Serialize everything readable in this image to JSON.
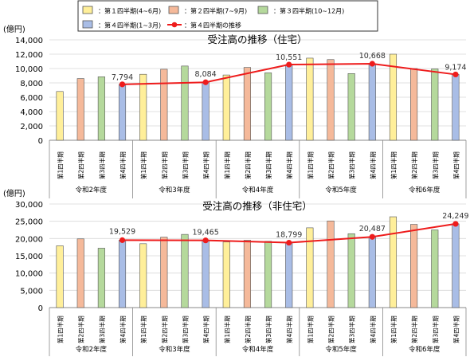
{
  "legend": {
    "items": [
      {
        "label": "：第１四半期(4~6月)",
        "color": "#ffef9a",
        "kind": "bar"
      },
      {
        "label": "：第２四半期(7~9月)",
        "color": "#f5b99a",
        "kind": "bar"
      },
      {
        "label": "：第３四半期(10~12月)",
        "color": "#b5d99c",
        "kind": "bar"
      },
      {
        "label": "：第４四半期(1~3月)",
        "color": "#a9bde6",
        "kind": "bar"
      },
      {
        "label": "：第４四半期の推移",
        "color": "#ee1c1c",
        "kind": "line"
      }
    ]
  },
  "colors": {
    "q1": "#ffef9a",
    "q2": "#f5b99a",
    "q3": "#b5d99c",
    "q4": "#a9bde6",
    "trend": "#ee1c1c",
    "bar_stroke": "#555555",
    "grid": "#d9d9d9"
  },
  "chart_data": [
    {
      "type": "bar",
      "title": "受注高の推移（住宅）",
      "unit_label": "(億円)",
      "ylim": [
        0,
        14000
      ],
      "yticks": [
        "0",
        "2,000",
        "4,000",
        "6,000",
        "8,000",
        "10,000",
        "12,000",
        "14,000"
      ],
      "yticks_values": [
        0,
        2000,
        4000,
        6000,
        8000,
        10000,
        12000,
        14000
      ],
      "categories": [
        "第1四半期",
        "第2四半期",
        "第3四半期",
        "第4四半期",
        "第1四半期",
        "第2四半期",
        "第3四半期",
        "第4四半期",
        "第1四半期",
        "第2四半期",
        "第3四半期",
        "第4四半期",
        "第1四半期",
        "第2四半期",
        "第3四半期",
        "第4四半期",
        "第1四半期",
        "第2四半期",
        "第3四半期",
        "第4四半期"
      ],
      "groups": [
        "令和2年度",
        "令和3年度",
        "令和4年度",
        "令和5年度",
        "令和6年度"
      ],
      "values": [
        6800,
        8600,
        8850,
        7794,
        9200,
        9900,
        10350,
        8084,
        9100,
        10150,
        9400,
        10551,
        11450,
        11250,
        9300,
        10668,
        12000,
        10000,
        9950,
        9174
      ],
      "trend": {
        "name": "第４四半期の推移",
        "values": [
          7794,
          8084,
          10551,
          10668,
          9174
        ],
        "labels": [
          "7,794",
          "8,084",
          "10,551",
          "10,668",
          "9,174"
        ]
      },
      "grid": true
    },
    {
      "type": "bar",
      "title": "受注高の推移（非住宅）",
      "unit_label": "(億円)",
      "ylim": [
        0,
        30000
      ],
      "yticks": [
        "0",
        "5,000",
        "10,000",
        "15,000",
        "20,000",
        "25,000",
        "30,000"
      ],
      "yticks_values": [
        0,
        5000,
        10000,
        15000,
        20000,
        25000,
        30000
      ],
      "categories": [
        "第1四半期",
        "第2四半期",
        "第3四半期",
        "第4四半期",
        "第1四半期",
        "第2四半期",
        "第3四半期",
        "第4四半期",
        "第1四半期",
        "第2四半期",
        "第3四半期",
        "第4四半期",
        "第1四半期",
        "第2四半期",
        "第3四半期",
        "第4四半期",
        "第1四半期",
        "第2四半期",
        "第3四半期",
        "第4四半期"
      ],
      "groups": [
        "令和2年度",
        "令和3年度",
        "令和4年度",
        "令和5年度",
        "令和6年度"
      ],
      "values": [
        17900,
        19900,
        17200,
        19529,
        18500,
        20400,
        21200,
        19465,
        19000,
        19500,
        19200,
        18799,
        23100,
        25100,
        21400,
        20487,
        26300,
        24100,
        22500,
        24249
      ],
      "trend": {
        "name": "第４四半期の推移",
        "values": [
          19529,
          19465,
          18799,
          20487,
          24249
        ],
        "labels": [
          "19,529",
          "19,465",
          "18,799",
          "20,487",
          "24,249"
        ]
      },
      "grid": true
    }
  ]
}
